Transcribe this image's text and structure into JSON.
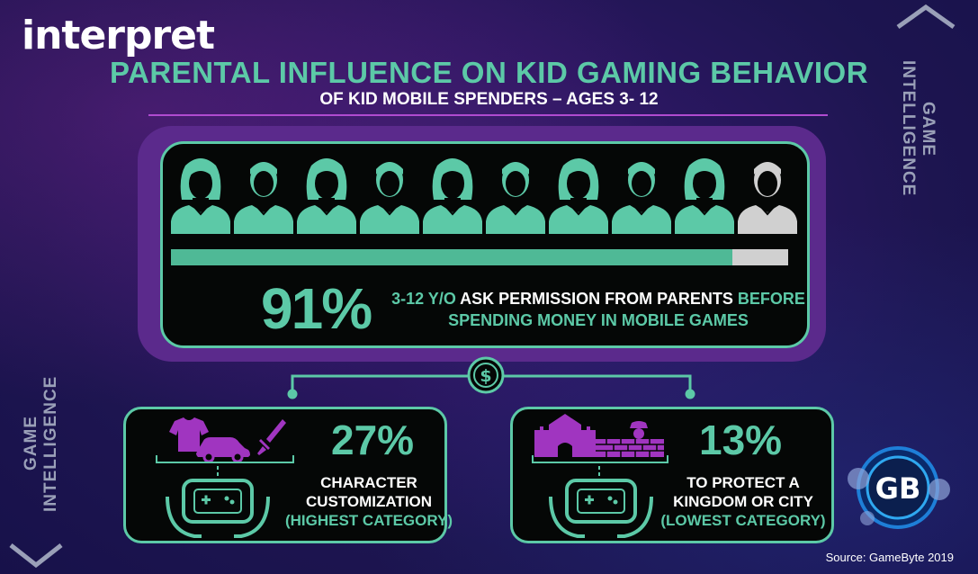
{
  "brand": {
    "logo_text": "interpret"
  },
  "header": {
    "title": "PARENTAL INFLUENCE ON KID GAMING BEHAVIOR",
    "subtitle": "OF KID MOBILE SPENDERS – AGES 3- 12"
  },
  "side_labels": {
    "right": "GAME INTELLIGENCE",
    "left": "GAME INTELLIGENCE"
  },
  "main_stat": {
    "value": "91%",
    "fraction_filled": 0.91,
    "icons_total": 10,
    "icons_highlighted": 9,
    "desc_part1": "3-12 Y/O",
    "desc_part2": " ASK PERMISSION FROM PARENTS ",
    "desc_part3": "BEFORE",
    "desc_line2": "SPENDING MONEY IN MOBILE GAMES"
  },
  "connector": {
    "icon": "dollar-icon",
    "symbol": "$"
  },
  "cards": [
    {
      "value": "27%",
      "line1": "CHARACTER",
      "line2": "CUSTOMIZATION",
      "note": "(HIGHEST CATEGORY)",
      "icons": [
        "shirt-icon",
        "car-icon",
        "sword-icon",
        "game-controller-icon"
      ]
    },
    {
      "value": "13%",
      "line1": "TO PROTECT A",
      "line2": "KINGDOM OR CITY",
      "note": "(LOWEST CATEGORY)",
      "icons": [
        "castle-icon",
        "wall-icon",
        "guard-icon",
        "game-controller-icon"
      ]
    }
  ],
  "source": "Source: GameByte 2019",
  "badge": {
    "text": "GB",
    "icon": "gamebyte-logo-icon"
  },
  "colors": {
    "teal": "#5cc9a7",
    "purple": "#a035c0",
    "gray_person": "#d0d0d0",
    "panel_bg": "#050706"
  }
}
